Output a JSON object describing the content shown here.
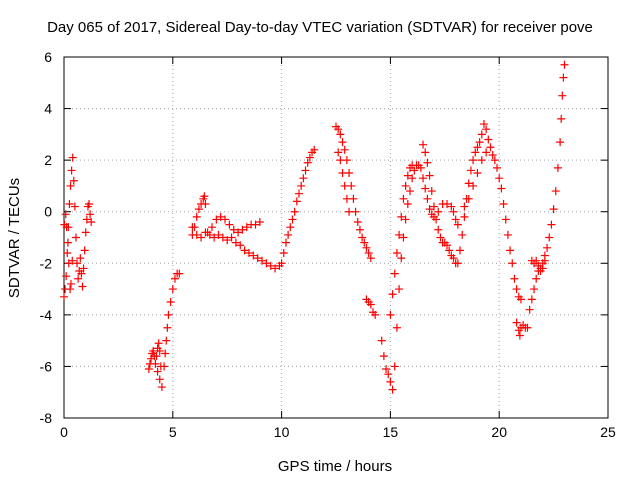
{
  "chart_data": {
    "type": "scatter",
    "title": "Day 065 of 2017, Sidereal Day-to-day VTEC variation (SDTVAR) for receiver pove",
    "xlabel": "GPS time / hours",
    "ylabel": "SDTVAR / TECUs",
    "xlim": [
      0,
      25
    ],
    "ylim": [
      -8,
      6
    ],
    "xticks": [
      0,
      5,
      10,
      15,
      20,
      25
    ],
    "yticks": [
      -8,
      -6,
      -4,
      -2,
      0,
      2,
      4,
      6
    ],
    "xtick_labels": [
      "0",
      "5",
      "10",
      "15",
      "20",
      "25"
    ],
    "ytick_labels": [
      "-8",
      "-6",
      "-4",
      "-2",
      "0",
      "2",
      "4",
      "6"
    ],
    "grid": true,
    "legend": "none",
    "marker": "plus",
    "colors": {
      "series": "#ff0000",
      "grid": "#a0a0a0",
      "axis": "#000000"
    },
    "series": [
      {
        "points": [
          [
            0.0,
            -3.3
          ],
          [
            0.05,
            -3.0
          ],
          [
            0.1,
            -2.5
          ],
          [
            0.15,
            -1.6
          ],
          [
            0.2,
            -0.6
          ],
          [
            0.25,
            0.3
          ],
          [
            0.3,
            1.0
          ],
          [
            0.35,
            1.6
          ],
          [
            0.4,
            2.1
          ],
          [
            0.45,
            1.2
          ],
          [
            0.5,
            0.2
          ],
          [
            0.55,
            -1.0
          ],
          [
            0.6,
            -2.0
          ],
          [
            0.65,
            -2.6
          ],
          [
            0.7,
            -2.3
          ],
          [
            0.75,
            -1.8
          ],
          [
            0.8,
            -2.4
          ],
          [
            0.85,
            -2.9
          ],
          [
            0.9,
            -2.2
          ],
          [
            0.95,
            -1.5
          ],
          [
            1.0,
            -0.8
          ],
          [
            1.05,
            -0.3
          ],
          [
            1.1,
            0.2
          ],
          [
            1.15,
            0.3
          ],
          [
            1.2,
            -0.1
          ],
          [
            1.25,
            -0.4
          ],
          [
            0.02,
            -0.5
          ],
          [
            0.08,
            -0.1
          ],
          [
            0.12,
            -0.6
          ],
          [
            0.18,
            -1.2
          ],
          [
            0.22,
            -2.0
          ],
          [
            0.28,
            -3.0
          ],
          [
            0.32,
            -2.8
          ],
          [
            0.38,
            -1.9
          ],
          [
            3.9,
            -6.1
          ],
          [
            3.95,
            -5.9
          ],
          [
            4.0,
            -5.7
          ],
          [
            4.05,
            -5.5
          ],
          [
            4.1,
            -5.4
          ],
          [
            4.15,
            -5.6
          ],
          [
            4.2,
            -5.9
          ],
          [
            4.25,
            -5.6
          ],
          [
            4.3,
            -5.3
          ],
          [
            4.35,
            -5.1
          ],
          [
            4.4,
            -5.4
          ],
          [
            4.45,
            -6.0
          ],
          [
            4.5,
            -6.8
          ],
          [
            4.4,
            -6.5
          ],
          [
            4.3,
            -6.2
          ],
          [
            4.6,
            -6.0
          ],
          [
            4.65,
            -5.5
          ],
          [
            4.7,
            -5.0
          ],
          [
            4.75,
            -4.5
          ],
          [
            4.8,
            -4.0
          ],
          [
            4.9,
            -3.5
          ],
          [
            5.0,
            -3.0
          ],
          [
            5.1,
            -2.6
          ],
          [
            5.2,
            -2.4
          ],
          [
            5.3,
            -2.4
          ],
          [
            5.9,
            -0.9
          ],
          [
            6.0,
            -0.6
          ],
          [
            6.1,
            -0.2
          ],
          [
            6.2,
            0.1
          ],
          [
            6.3,
            0.3
          ],
          [
            6.4,
            0.5
          ],
          [
            6.45,
            0.6
          ],
          [
            6.5,
            0.3
          ],
          [
            6.6,
            -0.8
          ],
          [
            6.8,
            -0.6
          ],
          [
            7.0,
            -0.3
          ],
          [
            7.2,
            -0.2
          ],
          [
            7.4,
            -0.3
          ],
          [
            7.6,
            -0.5
          ],
          [
            7.8,
            -0.7
          ],
          [
            8.0,
            -0.8
          ],
          [
            8.2,
            -0.7
          ],
          [
            8.4,
            -0.6
          ],
          [
            8.6,
            -0.5
          ],
          [
            8.8,
            -0.5
          ],
          [
            9.0,
            -0.4
          ],
          [
            5.9,
            -0.6
          ],
          [
            6.1,
            -0.9
          ],
          [
            6.3,
            -1.0
          ],
          [
            6.5,
            -0.8
          ],
          [
            6.7,
            -0.9
          ],
          [
            6.9,
            -1.0
          ],
          [
            7.1,
            -0.9
          ],
          [
            7.3,
            -1.0
          ],
          [
            7.5,
            -1.1
          ],
          [
            7.7,
            -1.0
          ],
          [
            7.9,
            -1.2
          ],
          [
            8.1,
            -1.3
          ],
          [
            8.3,
            -1.5
          ],
          [
            8.5,
            -1.6
          ],
          [
            8.7,
            -1.7
          ],
          [
            8.9,
            -1.8
          ],
          [
            9.1,
            -1.9
          ],
          [
            9.3,
            -2.0
          ],
          [
            9.5,
            -2.1
          ],
          [
            9.7,
            -2.2
          ],
          [
            9.9,
            -2.1
          ],
          [
            10.0,
            -2.0
          ],
          [
            10.1,
            -1.6
          ],
          [
            10.2,
            -1.2
          ],
          [
            10.3,
            -0.9
          ],
          [
            10.4,
            -0.6
          ],
          [
            10.5,
            -0.3
          ],
          [
            10.6,
            0.0
          ],
          [
            10.7,
            0.4
          ],
          [
            10.8,
            0.7
          ],
          [
            10.9,
            1.0
          ],
          [
            11.0,
            1.3
          ],
          [
            11.1,
            1.6
          ],
          [
            11.2,
            1.9
          ],
          [
            11.3,
            2.1
          ],
          [
            11.4,
            2.3
          ],
          [
            11.5,
            2.4
          ],
          [
            12.5,
            3.3
          ],
          [
            12.6,
            3.2
          ],
          [
            12.7,
            3.0
          ],
          [
            12.8,
            2.7
          ],
          [
            12.9,
            2.4
          ],
          [
            13.0,
            2.0
          ],
          [
            13.1,
            1.5
          ],
          [
            13.2,
            1.0
          ],
          [
            13.3,
            0.5
          ],
          [
            13.4,
            0.0
          ],
          [
            13.5,
            -0.4
          ],
          [
            13.6,
            -0.7
          ],
          [
            13.7,
            -1.0
          ],
          [
            13.8,
            -1.2
          ],
          [
            13.9,
            -1.4
          ],
          [
            14.0,
            -1.6
          ],
          [
            14.1,
            -1.8
          ],
          [
            12.6,
            2.3
          ],
          [
            12.7,
            2.0
          ],
          [
            12.8,
            1.5
          ],
          [
            12.9,
            1.0
          ],
          [
            13.0,
            0.5
          ],
          [
            13.1,
            0.0
          ],
          [
            13.9,
            -3.4
          ],
          [
            14.0,
            -3.5
          ],
          [
            14.1,
            -3.6
          ],
          [
            14.2,
            -3.9
          ],
          [
            14.3,
            -4.0
          ],
          [
            14.6,
            -5.0
          ],
          [
            14.7,
            -5.6
          ],
          [
            14.8,
            -6.1
          ],
          [
            14.9,
            -6.3
          ],
          [
            15.0,
            -6.6
          ],
          [
            15.1,
            -6.9
          ],
          [
            15.2,
            -6.0
          ],
          [
            15.3,
            -4.5
          ],
          [
            15.4,
            -3.0
          ],
          [
            15.5,
            -1.8
          ],
          [
            15.6,
            -1.0
          ],
          [
            15.7,
            -0.3
          ],
          [
            15.8,
            0.3
          ],
          [
            15.9,
            0.8
          ],
          [
            16.0,
            1.3
          ],
          [
            16.1,
            1.6
          ],
          [
            16.2,
            1.8
          ],
          [
            15.0,
            -4.0
          ],
          [
            15.1,
            -3.2
          ],
          [
            15.2,
            -2.4
          ],
          [
            15.3,
            -1.6
          ],
          [
            15.4,
            -0.9
          ],
          [
            15.5,
            -0.2
          ],
          [
            15.6,
            0.5
          ],
          [
            15.7,
            1.0
          ],
          [
            15.8,
            1.4
          ],
          [
            15.9,
            1.7
          ],
          [
            16.0,
            1.8
          ],
          [
            16.3,
            1.8
          ],
          [
            16.4,
            1.7
          ],
          [
            16.5,
            1.3
          ],
          [
            16.6,
            0.9
          ],
          [
            16.7,
            0.5
          ],
          [
            16.8,
            0.1
          ],
          [
            16.9,
            -0.1
          ],
          [
            17.0,
            -0.2
          ],
          [
            17.2,
            0.0
          ],
          [
            17.4,
            0.3
          ],
          [
            17.6,
            0.3
          ],
          [
            17.8,
            0.2
          ],
          [
            17.9,
            0.0
          ],
          [
            18.0,
            -0.3
          ],
          [
            18.1,
            -0.5
          ],
          [
            16.5,
            2.6
          ],
          [
            16.6,
            2.3
          ],
          [
            16.7,
            1.9
          ],
          [
            16.8,
            1.4
          ],
          [
            16.9,
            0.8
          ],
          [
            17.0,
            0.2
          ],
          [
            17.1,
            -0.3
          ],
          [
            17.2,
            -0.7
          ],
          [
            17.3,
            -1.0
          ],
          [
            17.4,
            -1.2
          ],
          [
            17.5,
            -1.2
          ],
          [
            17.6,
            -1.3
          ],
          [
            17.7,
            -1.5
          ],
          [
            17.8,
            -1.7
          ],
          [
            17.9,
            -1.8
          ],
          [
            18.0,
            -2.0
          ],
          [
            18.1,
            -2.0
          ],
          [
            18.2,
            -1.5
          ],
          [
            18.3,
            -0.9
          ],
          [
            18.4,
            -0.2
          ],
          [
            18.5,
            0.5
          ],
          [
            18.6,
            1.1
          ],
          [
            18.7,
            1.6
          ],
          [
            18.8,
            2.0
          ],
          [
            18.9,
            2.3
          ],
          [
            19.0,
            2.5
          ],
          [
            19.1,
            2.7
          ],
          [
            19.2,
            3.0
          ],
          [
            19.3,
            3.4
          ],
          [
            19.4,
            3.2
          ],
          [
            19.5,
            2.8
          ],
          [
            19.6,
            2.5
          ],
          [
            19.7,
            2.2
          ],
          [
            18.4,
            0.2
          ],
          [
            18.6,
            0.5
          ],
          [
            18.8,
            1.0
          ],
          [
            19.0,
            1.5
          ],
          [
            19.2,
            2.0
          ],
          [
            19.4,
            2.3
          ],
          [
            19.8,
            2.0
          ],
          [
            19.9,
            1.7
          ],
          [
            20.0,
            1.3
          ],
          [
            20.1,
            0.9
          ],
          [
            20.2,
            0.3
          ],
          [
            20.3,
            -0.3
          ],
          [
            20.4,
            -0.9
          ],
          [
            20.5,
            -1.5
          ],
          [
            20.6,
            -2.0
          ],
          [
            20.7,
            -2.6
          ],
          [
            20.8,
            -3.0
          ],
          [
            20.9,
            -3.3
          ],
          [
            21.0,
            -3.4
          ],
          [
            20.8,
            -4.3
          ],
          [
            20.9,
            -4.6
          ],
          [
            20.95,
            -4.8
          ],
          [
            21.0,
            -4.5
          ],
          [
            21.1,
            -4.4
          ],
          [
            21.2,
            -4.5
          ],
          [
            21.3,
            -4.5
          ],
          [
            21.4,
            -3.8
          ],
          [
            21.5,
            -3.4
          ],
          [
            21.6,
            -3.0
          ],
          [
            21.7,
            -2.6
          ],
          [
            21.8,
            -2.3
          ],
          [
            21.9,
            -2.2
          ],
          [
            22.0,
            -2.0
          ],
          [
            22.1,
            -1.7
          ],
          [
            22.2,
            -1.4
          ],
          [
            22.3,
            -1.0
          ],
          [
            22.4,
            -0.5
          ],
          [
            22.5,
            0.1
          ],
          [
            22.6,
            0.8
          ],
          [
            22.7,
            1.7
          ],
          [
            22.8,
            2.7
          ],
          [
            22.85,
            3.6
          ],
          [
            22.9,
            4.5
          ],
          [
            22.95,
            5.2
          ],
          [
            23.0,
            5.7
          ],
          [
            21.5,
            -1.9
          ],
          [
            21.6,
            -2.0
          ],
          [
            21.7,
            -1.9
          ],
          [
            21.8,
            -2.1
          ],
          [
            21.9,
            -2.3
          ],
          [
            22.0,
            -2.2
          ],
          [
            22.1,
            -1.9
          ]
        ]
      }
    ]
  }
}
